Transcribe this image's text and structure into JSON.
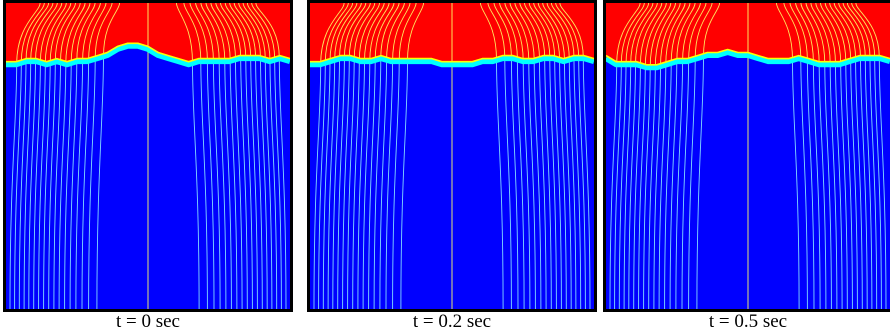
{
  "colors": {
    "upper_phase": "#ff0000",
    "lower_phase": "#0000ff",
    "interface_band": "#00ffff",
    "interface_edge": "#ffff00",
    "streamline_upper": "#ffff66",
    "streamline_lower": "#99ffff",
    "frame": "#000000"
  },
  "panels": [
    {
      "caption": "t = 0 sec",
      "interface_profile": [
        0.2,
        0.2,
        0.19,
        0.19,
        0.2,
        0.19,
        0.2,
        0.19,
        0.19,
        0.18,
        0.17,
        0.15,
        0.14,
        0.14,
        0.15,
        0.17,
        0.18,
        0.19,
        0.2,
        0.19,
        0.19,
        0.19,
        0.19,
        0.18,
        0.18,
        0.18,
        0.19,
        0.18,
        0.19
      ]
    },
    {
      "caption": "t = 0.2 sec",
      "interface_profile": [
        0.2,
        0.2,
        0.19,
        0.18,
        0.18,
        0.19,
        0.19,
        0.18,
        0.19,
        0.19,
        0.19,
        0.19,
        0.19,
        0.2,
        0.2,
        0.2,
        0.2,
        0.19,
        0.19,
        0.18,
        0.18,
        0.19,
        0.19,
        0.18,
        0.18,
        0.19,
        0.18,
        0.18,
        0.19
      ]
    },
    {
      "caption": "t = 0.5 sec",
      "interface_profile": [
        0.18,
        0.2,
        0.2,
        0.2,
        0.21,
        0.21,
        0.2,
        0.19,
        0.19,
        0.18,
        0.17,
        0.17,
        0.16,
        0.17,
        0.17,
        0.18,
        0.19,
        0.19,
        0.19,
        0.18,
        0.19,
        0.2,
        0.2,
        0.2,
        0.19,
        0.18,
        0.18,
        0.18,
        0.19
      ]
    }
  ]
}
